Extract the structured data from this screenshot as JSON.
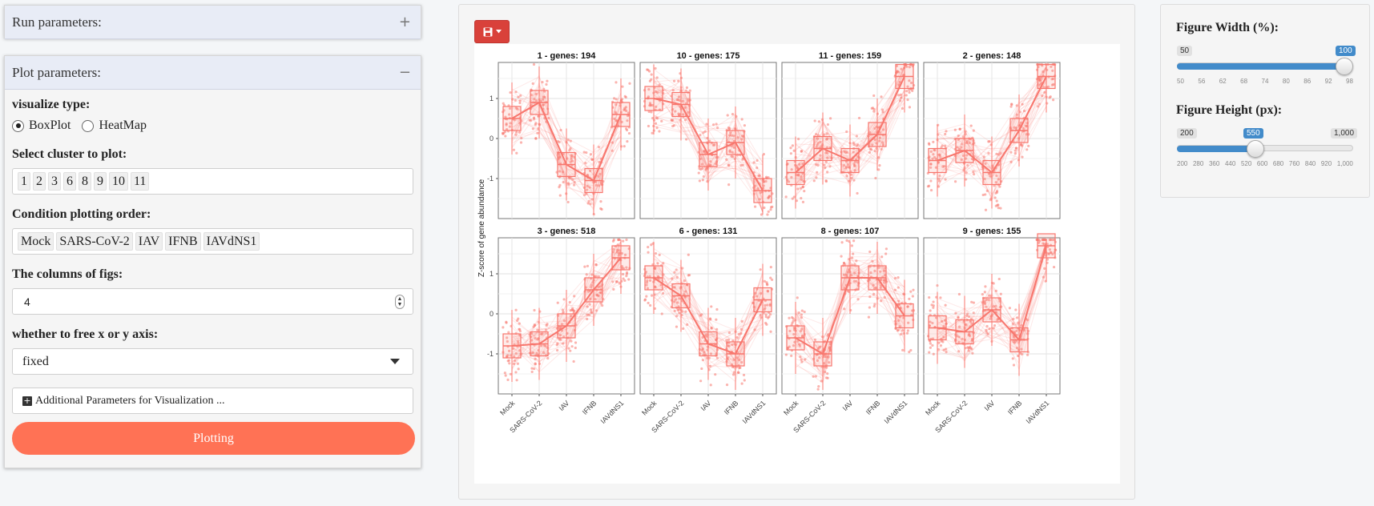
{
  "run_panel": {
    "title": "Run parameters:",
    "toggle": "+"
  },
  "plot_panel": {
    "title": "Plot parameters:",
    "toggle": "−",
    "visualize_type": {
      "label": "visualize type:",
      "options": [
        "BoxPlot",
        "HeatMap"
      ],
      "selected": "BoxPlot"
    },
    "cluster_select": {
      "label": "Select cluster to plot:",
      "tags": [
        "1",
        "2",
        "3",
        "6",
        "8",
        "9",
        "10",
        "11"
      ]
    },
    "condition_order": {
      "label": "Condition plotting order:",
      "tags": [
        "Mock",
        "SARS-CoV-2",
        "IAV",
        "IFNB",
        "IAVdNS1"
      ]
    },
    "columns": {
      "label": "The columns of figs:",
      "value": "4"
    },
    "free_axis": {
      "label": "whether to free x or y axis:",
      "value": "fixed"
    },
    "additional": {
      "label": "Additional Parameters for Visualization ..."
    },
    "plot_button": "Plotting"
  },
  "figure_width": {
    "label": "Figure Width (%):",
    "min": "50",
    "max": "100",
    "value": "100",
    "value_fraction": 1.0,
    "ticks": [
      "50",
      "56",
      "62",
      "68",
      "74",
      "80",
      "86",
      "92",
      "98"
    ]
  },
  "figure_height": {
    "label": "Figure Height (px):",
    "min": "200",
    "max": "1,000",
    "value": "550",
    "value_fraction": 0.4375,
    "ticks": [
      "200",
      "280",
      "360",
      "440",
      "520",
      "600",
      "680",
      "760",
      "840",
      "920",
      "1,000"
    ]
  },
  "colors": {
    "accent": "#ff7255",
    "download": "#d9413a",
    "slider": "#428bca",
    "plot_line": "#f8766d"
  },
  "chart_data": {
    "type": "box",
    "ylabel": "Z-score of gene abundance",
    "categories": [
      "Mock",
      "SARS-CoV-2",
      "IAV",
      "IFNB",
      "IAVdNS1"
    ],
    "yticks": [
      "-1",
      "0",
      "1"
    ],
    "ylim": [
      -2.0,
      1.9
    ],
    "panels": [
      {
        "title": "1 - genes: 194",
        "medians": [
          0.5,
          0.9,
          -0.65,
          -1.05,
          0.6
        ]
      },
      {
        "title": "10 - genes: 175",
        "medians": [
          1.0,
          0.85,
          -0.4,
          -0.1,
          -1.3
        ]
      },
      {
        "title": "11 - genes: 159",
        "medians": [
          -0.85,
          -0.25,
          -0.55,
          0.1,
          1.55
        ]
      },
      {
        "title": "2 - genes: 148",
        "medians": [
          -0.55,
          -0.3,
          -0.85,
          0.2,
          1.55
        ]
      },
      {
        "title": "3 - genes: 518",
        "medians": [
          -0.8,
          -0.75,
          -0.3,
          0.6,
          1.4
        ]
      },
      {
        "title": "6 - genes: 131",
        "medians": [
          0.9,
          0.45,
          -0.75,
          -1.0,
          0.35
        ]
      },
      {
        "title": "8 - genes: 107",
        "medians": [
          -0.6,
          -1.0,
          0.9,
          0.9,
          -0.05
        ]
      },
      {
        "title": "9 - genes: 155",
        "medians": [
          -0.35,
          -0.45,
          0.1,
          -0.65,
          1.7
        ]
      }
    ]
  }
}
